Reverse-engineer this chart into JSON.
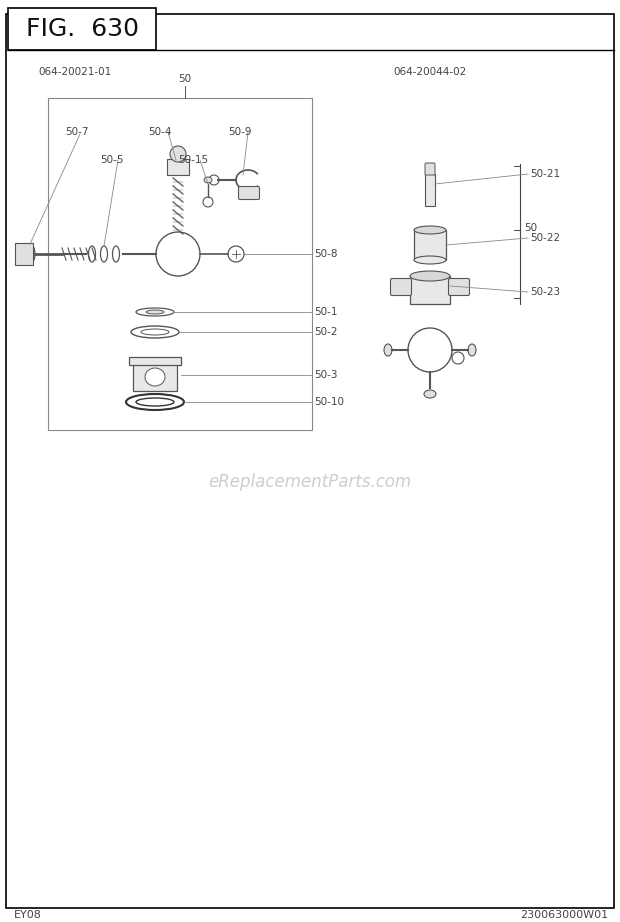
{
  "fig_title": "FIG.  630",
  "part_group1_label": "064-20021-01",
  "part_group2_label": "064-20044-02",
  "footer_left": "EY08",
  "footer_right": "230063000W01",
  "watermark": "eReplacementParts.com",
  "bg_color": "#ffffff",
  "border_color": "#000000",
  "line_color": "#555555",
  "text_color": "#444444",
  "fig_title_fontsize": 18,
  "label_fontsize": 7.5,
  "watermark_color": "#c8c8c8",
  "watermark_fontsize": 12
}
